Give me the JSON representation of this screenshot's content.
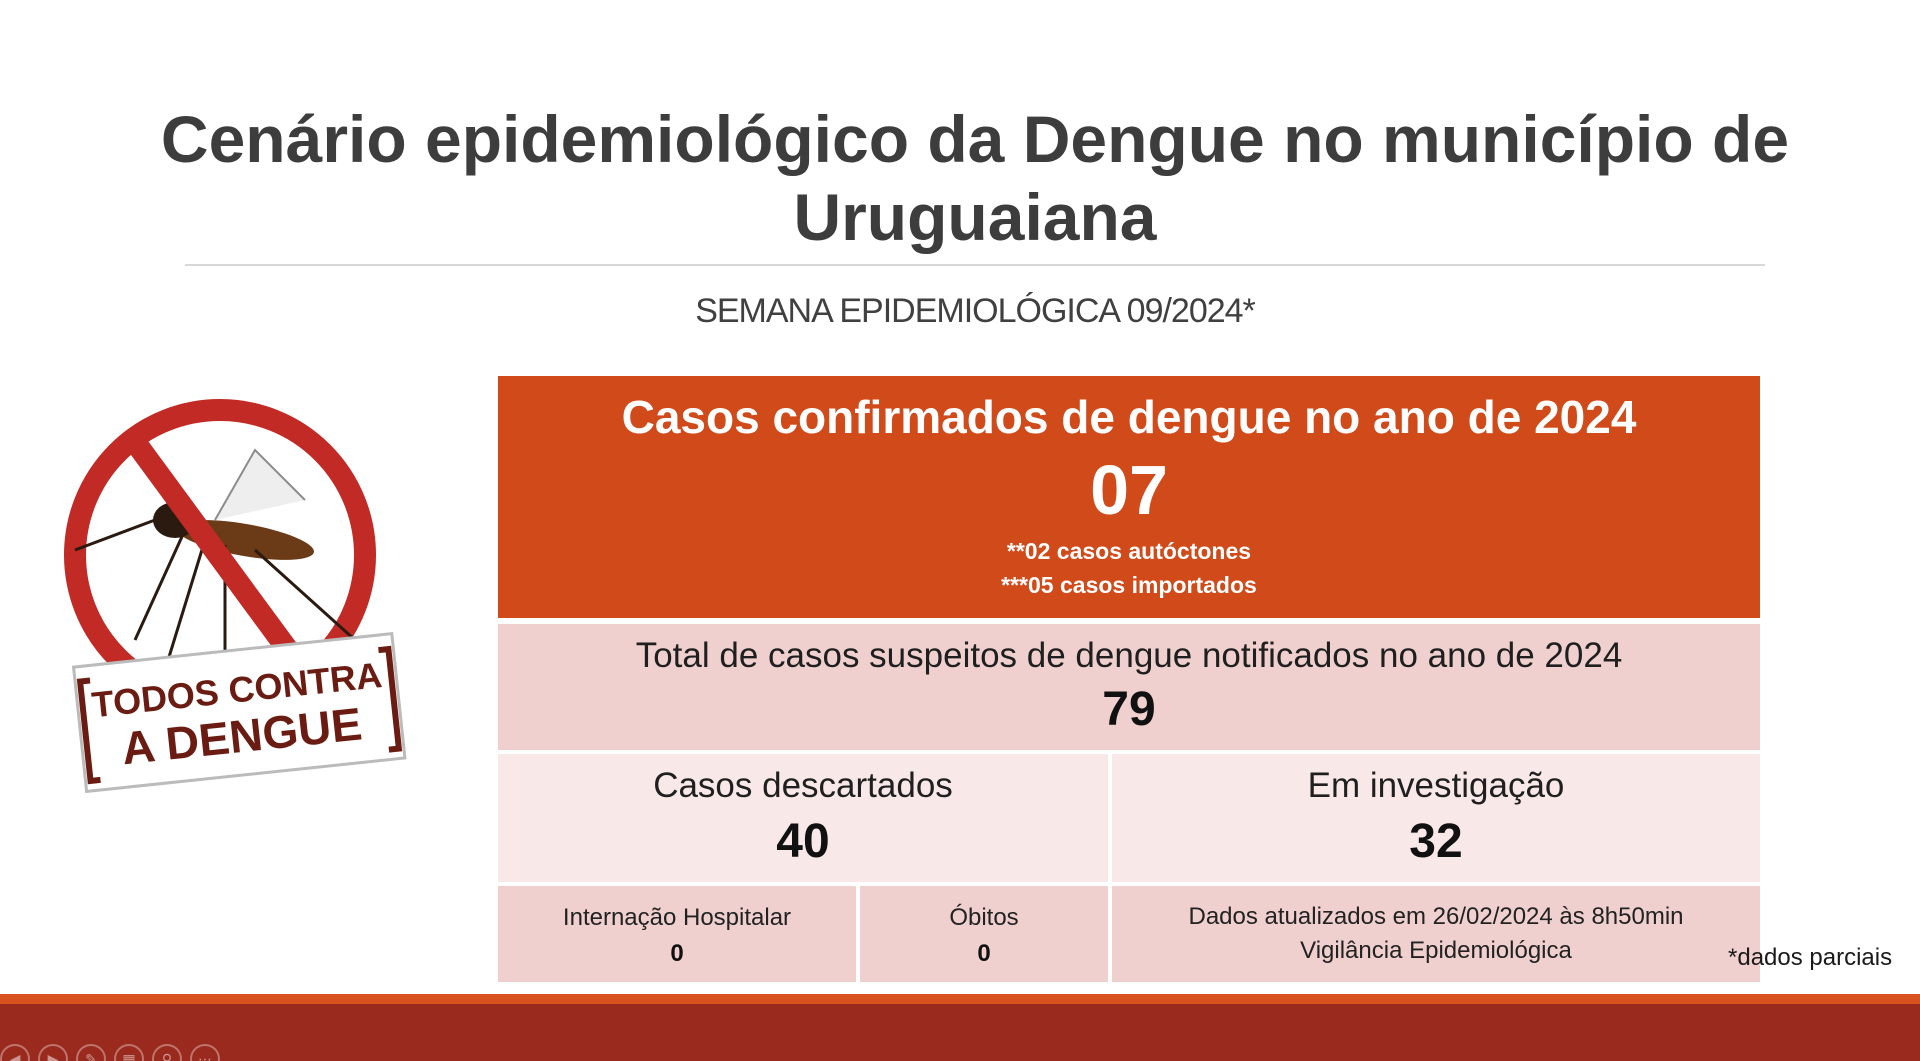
{
  "slide": {
    "title_line1": "Cenário epidemiológico da Dengue no município de",
    "title_line2": "Uruguaiana",
    "subtitle": "SEMANA EPIDEMIOLÓGICA 09/2024*"
  },
  "logo": {
    "text_line1": "TODOS CONTRA",
    "text_line2": "A DENGUE",
    "icon": "no-mosquito-icon"
  },
  "confirmed": {
    "label": "Casos confirmados de dengue no ano de 2024",
    "value": "07",
    "note1": "**02 casos autóctones",
    "note2": "***05 casos importados"
  },
  "suspect": {
    "label": "Total de casos suspeitos de dengue notificados no ano de 2024",
    "value": "79"
  },
  "discarded": {
    "label": "Casos descartados",
    "value": "40"
  },
  "investigation": {
    "label": "Em investigação",
    "value": "32"
  },
  "hospital": {
    "label": "Internação Hospitalar",
    "value": "0"
  },
  "deaths": {
    "label": "Óbitos",
    "value": "0"
  },
  "updated": {
    "line1": "Dados atualizados em 26/02/2024 às 8h50min",
    "line2": "Vigilância Epidemiológica"
  },
  "footnote": "*dados parciais",
  "colors": {
    "header_orange": "#d04a1a",
    "band_dark": "#9b2a1e",
    "band_accent": "#d9511f",
    "cell_pink": "#efd0ce",
    "cell_light": "#f8e9e8"
  },
  "controls": [
    "prev-icon",
    "play-icon",
    "pen-icon",
    "slides-icon",
    "zoom-icon",
    "more-icon"
  ]
}
